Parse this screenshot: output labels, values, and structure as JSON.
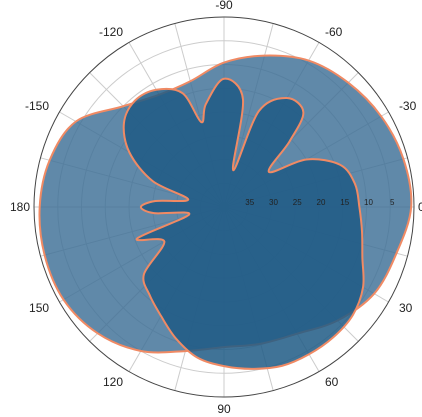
{
  "chart_data": {
    "type": "polar-area",
    "title": "",
    "angular_direction": "clockwise",
    "angular_zero": "right",
    "angle_tick_labels": [
      "0",
      "30",
      "60",
      "90",
      "120",
      "150",
      "180",
      "-150",
      "-120",
      "-90",
      "-60",
      "-30"
    ],
    "angle_tick_values": [
      0,
      30,
      60,
      90,
      120,
      150,
      180,
      -150,
      -120,
      -90,
      -60,
      -30
    ],
    "radial_axis": {
      "label_angle_deg": 0,
      "tick_labels": [
        "5",
        "10",
        "15",
        "20",
        "25",
        "30",
        "35"
      ],
      "tick_values": [
        5,
        10,
        15,
        20,
        25,
        30,
        35
      ],
      "inner_value": 40,
      "outer_value": 0,
      "reversed": true
    },
    "grid": true,
    "series": [
      {
        "name": "",
        "fill": "#3d6f96",
        "fill_opacity": 0.82,
        "stroke": "#f08a64",
        "points": [
          {
            "angle": 0,
            "r": 0.6
          },
          {
            "angle": 15,
            "r": 2.4
          },
          {
            "angle": 30,
            "r": 3.5
          },
          {
            "angle": 45,
            "r": 6.2
          },
          {
            "angle": 60,
            "r": 9.2
          },
          {
            "angle": 75,
            "r": 10.2
          },
          {
            "angle": 90,
            "r": 10.5
          },
          {
            "angle": 105,
            "r": 8.6
          },
          {
            "angle": 120,
            "r": 5.0
          },
          {
            "angle": 135,
            "r": 2.4
          },
          {
            "angle": 150,
            "r": 1.0
          },
          {
            "angle": 165,
            "r": 0.9
          },
          {
            "angle": 180,
            "r": 1.2
          },
          {
            "angle": -165,
            "r": 2.0
          },
          {
            "angle": -150,
            "r": 4.0
          },
          {
            "angle": -135,
            "r": 10.0
          },
          {
            "angle": -120,
            "r": 12.7
          },
          {
            "angle": -105,
            "r": 12.6
          },
          {
            "angle": -90,
            "r": 9.6
          },
          {
            "angle": -75,
            "r": 7.0
          },
          {
            "angle": -60,
            "r": 4.4
          },
          {
            "angle": -45,
            "r": 3.0
          },
          {
            "angle": -30,
            "r": 1.8
          },
          {
            "angle": -15,
            "r": 0.9
          }
        ]
      },
      {
        "name": "",
        "fill": "#1f5a85",
        "fill_opacity": 0.85,
        "stroke": "#f08a64",
        "points": [
          {
            "angle": 0,
            "r": 11.5
          },
          {
            "angle": 10,
            "r": 10.5
          },
          {
            "angle": 20,
            "r": 9.0
          },
          {
            "angle": 30,
            "r": 6.2
          },
          {
            "angle": 40,
            "r": 4.6
          },
          {
            "angle": 50,
            "r": 4.2
          },
          {
            "angle": 60,
            "r": 4.2
          },
          {
            "angle": 70,
            "r": 4.4
          },
          {
            "angle": 80,
            "r": 5.4
          },
          {
            "angle": 90,
            "r": 6.5
          },
          {
            "angle": 100,
            "r": 7.8
          },
          {
            "angle": 110,
            "r": 10.5
          },
          {
            "angle": 120,
            "r": 13.5
          },
          {
            "angle": 130,
            "r": 15.7
          },
          {
            "angle": 140,
            "r": 18.0
          },
          {
            "angle": 150,
            "r": 25.5
          },
          {
            "angle": 160,
            "r": 20.5
          },
          {
            "angle": 168,
            "r": 32.5
          },
          {
            "angle": 175,
            "r": 25.2
          },
          {
            "angle": 180,
            "r": 22.5
          },
          {
            "angle": -175,
            "r": 25.5
          },
          {
            "angle": -168,
            "r": 32.3
          },
          {
            "angle": -160,
            "r": 24.0
          },
          {
            "angle": -150,
            "r": 17.0
          },
          {
            "angle": -140,
            "r": 12.5
          },
          {
            "angle": -130,
            "r": 10.8
          },
          {
            "angle": -120,
            "r": 11.5
          },
          {
            "angle": -110,
            "r": 14.5
          },
          {
            "angle": -105,
            "r": 21.5
          },
          {
            "angle": -100,
            "r": 18.0
          },
          {
            "angle": -90,
            "r": 13.0
          },
          {
            "angle": -80,
            "r": 17.0
          },
          {
            "angle": -76,
            "r": 32.0
          },
          {
            "angle": -70,
            "r": 18.5
          },
          {
            "angle": -60,
            "r": 13.5
          },
          {
            "angle": -50,
            "r": 14.0
          },
          {
            "angle": -45,
            "r": 20.5
          },
          {
            "angle": -38,
            "r": 28.0
          },
          {
            "angle": -30,
            "r": 20.0
          },
          {
            "angle": -20,
            "r": 14.0
          },
          {
            "angle": -10,
            "r": 12.0
          }
        ]
      }
    ]
  }
}
